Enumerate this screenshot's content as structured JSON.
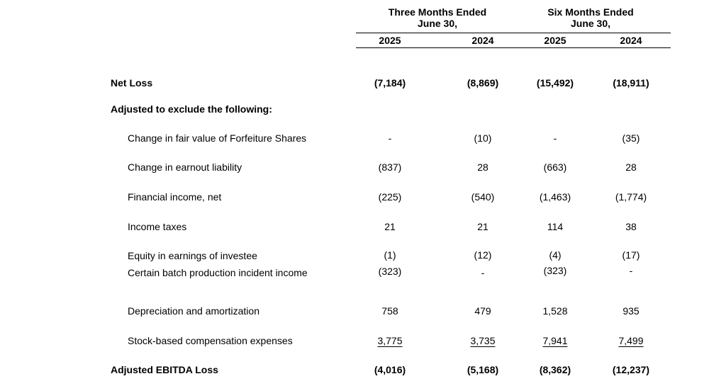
{
  "header": {
    "group1_line1": "Three Months Ended",
    "group1_line2": "June 30,",
    "group2_line1": "Six Months Ended",
    "group2_line2": "June 30,",
    "years": [
      "2025",
      "2024",
      "2025",
      "2024"
    ]
  },
  "rows": [
    {
      "label": "Net Loss",
      "values": [
        "(7,184)",
        "(8,869)",
        "(15,492)",
        "(18,911)"
      ]
    },
    {
      "label": "Adjusted to exclude the following:"
    },
    {
      "label": "Change in fair value of Forfeiture Shares",
      "values": [
        "-",
        "(10)",
        "-",
        "(35)"
      ]
    },
    {
      "label": "Change in earnout liability",
      "values": [
        "(837)",
        "28",
        "(663)",
        "28"
      ]
    },
    {
      "label": "Financial income, net",
      "values": [
        "(225)",
        "(540)",
        "(1,463)",
        "(1,774)"
      ]
    },
    {
      "label": "Income taxes",
      "values": [
        "21",
        "21",
        "114",
        "38"
      ]
    },
    {
      "label": "Equity in earnings of investee",
      "values": [
        "(1)",
        "(12)",
        "(4)",
        "(17)"
      ]
    },
    {
      "label": "Certain batch production incident income",
      "values": [
        "(323)",
        "-",
        "(323)",
        "-"
      ]
    },
    {
      "label": "Depreciation and amortization",
      "values": [
        "758",
        "479",
        "1,528",
        "935"
      ]
    },
    {
      "label": "Stock-based compensation expenses",
      "values": [
        "3,775",
        "3,735",
        "7,941",
        "7,499"
      ]
    },
    {
      "label": "Adjusted EBITDA Loss",
      "values": [
        "(4,016)",
        "(5,168)",
        "(8,362)",
        "(12,237)"
      ]
    }
  ]
}
